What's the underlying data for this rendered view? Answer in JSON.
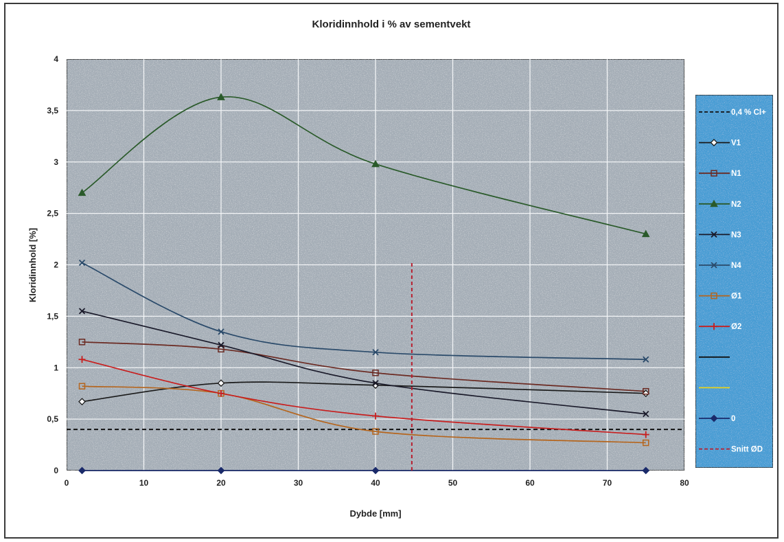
{
  "chart_data": {
    "type": "line",
    "title": "Kloridinnhold i % av sementvekt",
    "xlabel": "Dybde [mm]",
    "ylabel": "Kloridinnhold [%]",
    "xlim": [
      0,
      80
    ],
    "ylim": [
      0,
      4
    ],
    "x_ticks": [
      "0",
      "10",
      "20",
      "30",
      "40",
      "50",
      "60",
      "70",
      "80"
    ],
    "y_ticks": [
      "0",
      "0,5",
      "1",
      "1,5",
      "2",
      "2,5",
      "3",
      "3,5",
      "4"
    ],
    "grid": true,
    "legend_position": "right",
    "series": [
      {
        "name": "0,4 % Cl+",
        "color": "#111111",
        "dash": "dashed",
        "marker": "none",
        "x": [
          0,
          80
        ],
        "y": [
          0.4,
          0.4
        ]
      },
      {
        "name": "V1",
        "color": "#1a1a1a",
        "marker": "diamond-open",
        "x": [
          2,
          20,
          40,
          75
        ],
        "y": [
          0.67,
          0.85,
          0.83,
          0.75
        ]
      },
      {
        "name": "N1",
        "color": "#6b2a22",
        "marker": "square-open",
        "x": [
          2,
          20,
          40,
          75
        ],
        "y": [
          1.25,
          1.18,
          0.95,
          0.77
        ]
      },
      {
        "name": "N2",
        "color": "#2a5a2a",
        "marker": "triangle",
        "x": [
          2,
          20,
          40,
          75
        ],
        "y": [
          2.7,
          3.63,
          2.98,
          2.3
        ]
      },
      {
        "name": "N3",
        "color": "#1a1a2a",
        "marker": "x",
        "x": [
          2,
          20,
          40,
          75
        ],
        "y": [
          1.55,
          1.22,
          0.85,
          0.55
        ]
      },
      {
        "name": "N4",
        "color": "#2a4a6a",
        "marker": "x",
        "x": [
          2,
          20,
          40,
          75
        ],
        "y": [
          2.02,
          1.35,
          1.15,
          1.08
        ]
      },
      {
        "name": "Ø1",
        "color": "#b5651d",
        "marker": "square-open",
        "x": [
          2,
          20,
          40,
          75
        ],
        "y": [
          0.82,
          0.75,
          0.38,
          0.27
        ]
      },
      {
        "name": "Ø2",
        "color": "#c81e1e",
        "marker": "plus",
        "x": [
          2,
          20,
          40,
          75
        ],
        "y": [
          1.08,
          0.75,
          0.53,
          0.35
        ]
      },
      {
        "name": "",
        "color": "#111111",
        "marker": "none",
        "x": [],
        "y": []
      },
      {
        "name": "",
        "color": "#e6d21e",
        "marker": "none",
        "x": [],
        "y": []
      },
      {
        "name": "0",
        "color": "#1a2a6a",
        "marker": "diamond",
        "x": [
          2,
          20,
          40,
          75
        ],
        "y": [
          0,
          0,
          0,
          0
        ]
      },
      {
        "name": "Snitt ØD",
        "color": "#b81e2e",
        "dash": "dashed",
        "marker": "none",
        "x": [
          44.7,
          44.7
        ],
        "y": [
          0,
          2.02
        ]
      }
    ]
  }
}
